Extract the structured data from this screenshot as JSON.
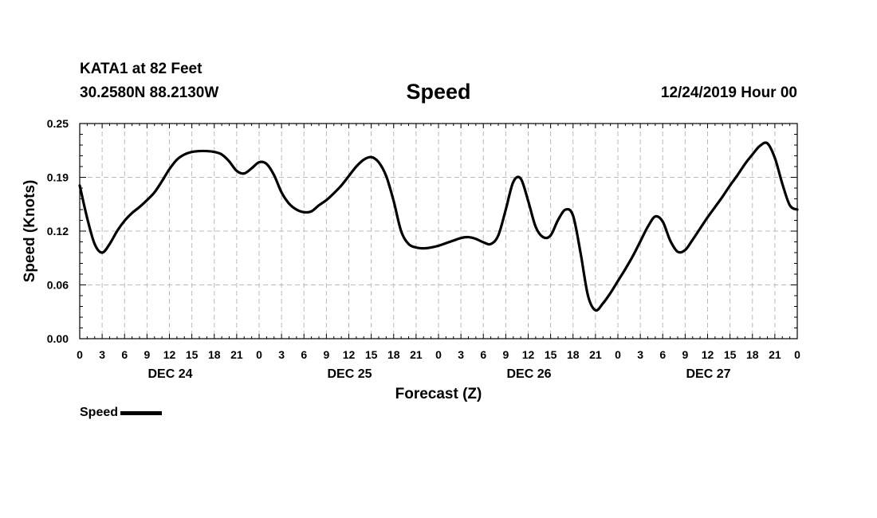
{
  "header": {
    "station": "KATA1 at 82 Feet",
    "coords": "30.2580N 88.2130W",
    "title": "Speed",
    "datetime": "12/24/2019 Hour 00"
  },
  "chart_data": {
    "type": "line",
    "title": "Speed",
    "xlabel": "Forecast (Z)",
    "ylabel": "Speed (Knots)",
    "xlim": [
      0,
      96
    ],
    "ylim": [
      0,
      0.25
    ],
    "grid": true,
    "y_ticks": [
      {
        "value": 0.0,
        "label": "0.00"
      },
      {
        "value": 0.0625,
        "label": "0.06"
      },
      {
        "value": 0.125,
        "label": "0.12"
      },
      {
        "value": 0.1875,
        "label": "0.19"
      },
      {
        "value": 0.25,
        "label": "0.25"
      }
    ],
    "x_tick_labels": [
      "0",
      "3",
      "6",
      "9",
      "12",
      "15",
      "18",
      "21",
      "0",
      "3",
      "6",
      "9",
      "12",
      "15",
      "18",
      "21",
      "0",
      "3",
      "6",
      "9",
      "12",
      "15",
      "18",
      "21",
      "0",
      "3",
      "6",
      "9",
      "12",
      "15",
      "18",
      "21",
      "0"
    ],
    "day_labels": [
      {
        "hour": 12,
        "label": "DEC 24"
      },
      {
        "hour": 36,
        "label": "DEC 25"
      },
      {
        "hour": 60,
        "label": "DEC 26"
      },
      {
        "hour": 84,
        "label": "DEC 27"
      }
    ],
    "legend": {
      "position": "bottom-left",
      "label": "Speed"
    },
    "series": [
      {
        "name": "Speed",
        "x": [
          0,
          1,
          2,
          3,
          4,
          5,
          6,
          7,
          8,
          9,
          10,
          11,
          12,
          13,
          14,
          15,
          16,
          17,
          18,
          19,
          20,
          21,
          22,
          23,
          24,
          25,
          26,
          27,
          28,
          29,
          30,
          31,
          32,
          33,
          34,
          35,
          36,
          37,
          38,
          39,
          40,
          41,
          42,
          43,
          44,
          45,
          46,
          47,
          48,
          49,
          50,
          51,
          52,
          53,
          54,
          55,
          56,
          57,
          58,
          59,
          60,
          61,
          62,
          63,
          64,
          65,
          66,
          67,
          68,
          69,
          70,
          71,
          72,
          73,
          74,
          75,
          76,
          77,
          78,
          79,
          80,
          81,
          82,
          83,
          84,
          85,
          86,
          87,
          88,
          89,
          90,
          91,
          92,
          93,
          94,
          95,
          96
        ],
        "values": [
          0.178,
          0.14,
          0.11,
          0.1,
          0.11,
          0.125,
          0.137,
          0.146,
          0.153,
          0.161,
          0.17,
          0.183,
          0.197,
          0.208,
          0.214,
          0.217,
          0.218,
          0.218,
          0.217,
          0.214,
          0.206,
          0.195,
          0.192,
          0.198,
          0.205,
          0.203,
          0.19,
          0.17,
          0.157,
          0.15,
          0.147,
          0.148,
          0.155,
          0.161,
          0.169,
          0.178,
          0.189,
          0.2,
          0.208,
          0.211,
          0.205,
          0.189,
          0.16,
          0.125,
          0.11,
          0.106,
          0.105,
          0.106,
          0.108,
          0.111,
          0.114,
          0.117,
          0.118,
          0.116,
          0.112,
          0.11,
          0.12,
          0.15,
          0.182,
          0.186,
          0.16,
          0.13,
          0.118,
          0.12,
          0.138,
          0.15,
          0.143,
          0.1,
          0.05,
          0.033,
          0.041,
          0.053,
          0.067,
          0.081,
          0.096,
          0.113,
          0.13,
          0.142,
          0.136,
          0.114,
          0.101,
          0.103,
          0.115,
          0.128,
          0.141,
          0.153,
          0.165,
          0.178,
          0.19,
          0.203,
          0.214,
          0.224,
          0.227,
          0.21,
          0.18,
          0.155,
          0.15
        ]
      }
    ]
  }
}
